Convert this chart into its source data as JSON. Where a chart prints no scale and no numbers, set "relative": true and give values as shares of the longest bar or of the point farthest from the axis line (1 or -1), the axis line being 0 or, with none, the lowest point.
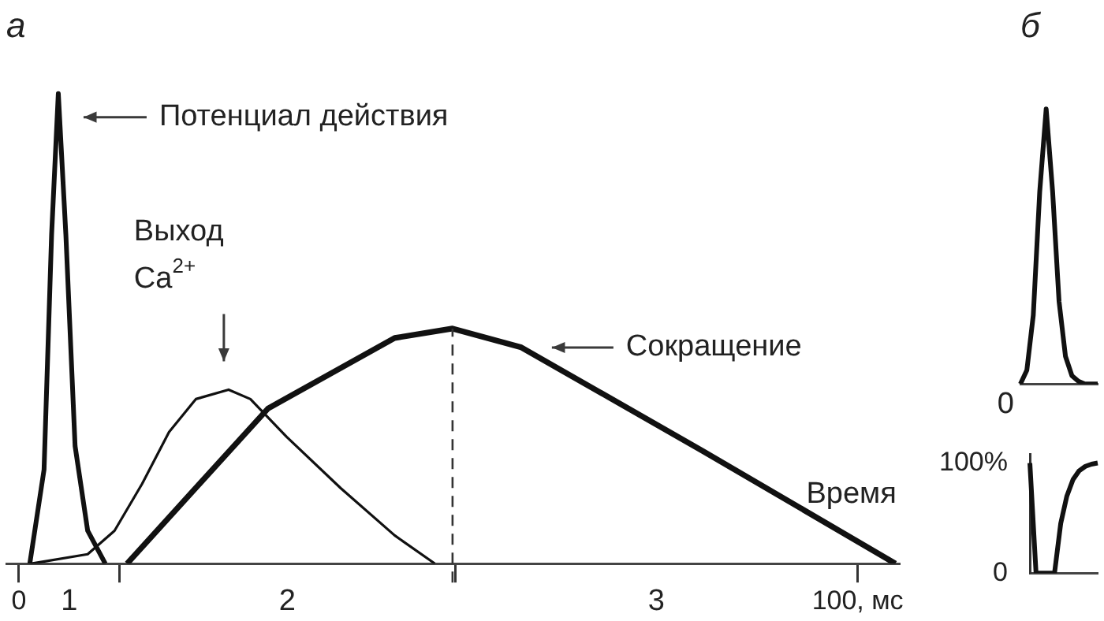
{
  "chart_data": [
    {
      "type": "line",
      "title": "а",
      "relative": true,
      "xlim": [
        -1.5,
        105
      ],
      "xticks": [
        0,
        {
          "value": 12,
          "label": null
        },
        {
          "value": 52,
          "label": null
        },
        {
          "value": 100,
          "label": "100, мс"
        }
      ],
      "grid": false,
      "legend": false,
      "marker": "none",
      "line_style": "solid",
      "series": [
        {
          "color": "#111111",
          "x": [
            1.3,
            3,
            3.9,
            4.7,
            5.6,
            6.7,
            8.2,
            10.3
          ],
          "values": [
            0,
            0.2,
            0.7,
            1,
            0.7,
            0.25,
            0.07,
            0
          ]
        },
        {
          "color": "#111111",
          "x": [
            1.5,
            8.2,
            11.4,
            14.7,
            17.9,
            21.1,
            25,
            27.6,
            31.9,
            38.4,
            44.8,
            49.6
          ],
          "values": [
            0,
            0.02,
            0.07,
            0.17,
            0.28,
            0.35,
            0.37,
            0.35,
            0.27,
            0.16,
            0.06,
            0
          ]
        },
        {
          "color": "#111111",
          "x": [
            12.9,
            29.7,
            44.8,
            51.7,
            59.9,
            81.5,
            104.5
          ],
          "values": [
            0,
            0.33,
            0.48,
            0.5,
            0.46,
            0.24,
            0
          ]
        }
      ],
      "ref_lines": [
        {
          "axis": "x",
          "value": 51.7,
          "line_style": "dashed"
        }
      ],
      "annotations": [
        "Потенциал действия",
        "Выход\nCa$^{2+}$",
        "Сокращение",
        "1",
        "2",
        "3",
        "Время"
      ]
    },
    {
      "type": "line",
      "title": "б",
      "relative": true,
      "categories": [
        null,
        null,
        null,
        null,
        null,
        null,
        null,
        null,
        null,
        null,
        null,
        null,
        null
      ],
      "legend": false,
      "marker": "none",
      "annotations": [
        "0"
      ],
      "series": [
        {
          "color": "#111111",
          "values": [
            0,
            0.05,
            0.25,
            0.7,
            1,
            0.7,
            0.3,
            0.1,
            0.03,
            0.01,
            0,
            0,
            0
          ]
        }
      ]
    },
    {
      "type": "line",
      "categories": [
        null,
        null,
        null,
        null,
        null,
        null,
        null,
        null,
        null,
        null,
        null,
        null
      ],
      "ylim": [
        0,
        108
      ],
      "yticks": [
        0,
        {
          "value": 100,
          "label": "100%"
        }
      ],
      "legend": false,
      "marker": "none",
      "series": [
        {
          "color": "#111111",
          "values": [
            100,
            0,
            0,
            0,
            0,
            45,
            70,
            85,
            93,
            97,
            99,
            100
          ]
        }
      ]
    }
  ]
}
